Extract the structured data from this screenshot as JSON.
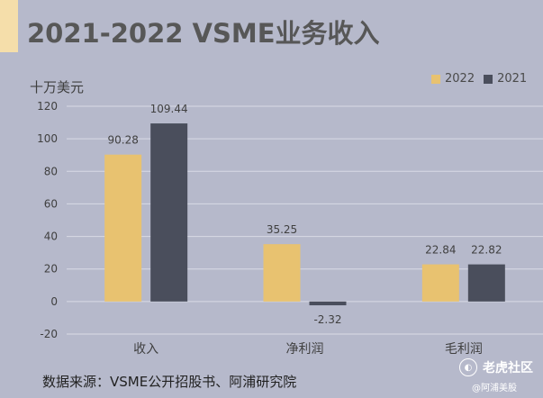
{
  "title": "2021-2022 VSME业务收入",
  "unit": "十万美元",
  "source": "数据来源：VSME公开招股书、阿浦研究院",
  "watermark": {
    "brand": "老虎社区",
    "handle": "@阿浦美股",
    "logo_icon": "tiger-logo-icon"
  },
  "colors": {
    "s2022": "#e8c270",
    "s2021": "#4a4e5c",
    "grid": "#d9dbe6",
    "text": "#404040"
  },
  "chart_data": {
    "type": "bar",
    "categories": [
      "收入",
      "净利润",
      "毛利润"
    ],
    "series": [
      {
        "name": "2022",
        "values": [
          90.28,
          35.25,
          22.84
        ]
      },
      {
        "name": "2021",
        "values": [
          109.44,
          -2.32,
          22.82
        ]
      }
    ],
    "value_labels": [
      [
        "90.28",
        "35.25",
        "22.84"
      ],
      [
        "109.44",
        "-2.32",
        "22.82"
      ]
    ],
    "yticks": [
      "-20",
      "0",
      "20",
      "40",
      "60",
      "80",
      "100",
      "120"
    ],
    "ylim": [
      -20,
      120
    ],
    "grid": true,
    "legend_position": "top-right"
  }
}
